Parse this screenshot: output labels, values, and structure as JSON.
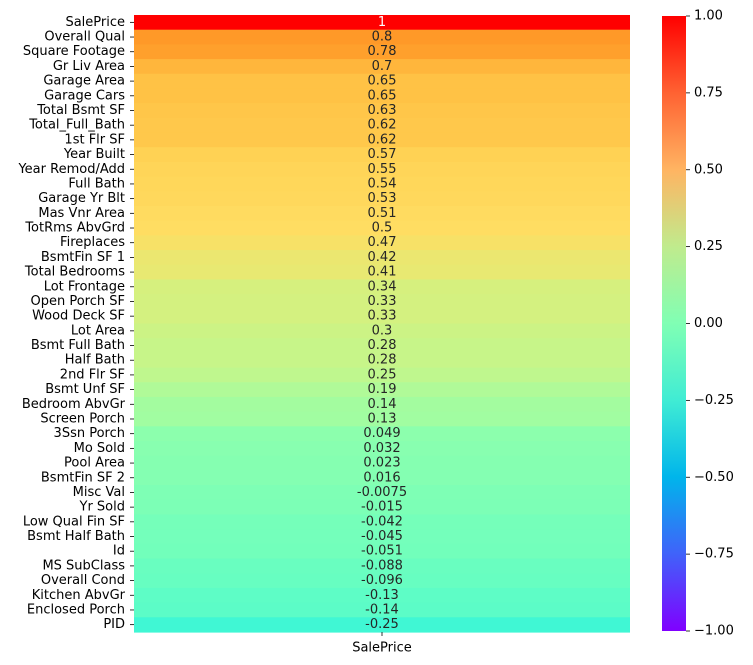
{
  "chart_data": {
    "type": "heatmap",
    "colormap": "rainbow",
    "x_categories": [
      "SalePrice"
    ],
    "y_categories": [
      "SalePrice",
      "Overall Qual",
      "Square Footage",
      "Gr Liv Area",
      "Garage Area",
      "Garage Cars",
      "Total Bsmt SF",
      "Total_Full_Bath",
      "1st Flr SF",
      "Year Built",
      "Year Remod/Add",
      "Full Bath",
      "Garage Yr Blt",
      "Mas Vnr Area",
      "TotRms AbvGrd",
      "Fireplaces",
      "BsmtFin SF 1",
      "Total Bedrooms",
      "Lot Frontage",
      "Open Porch SF",
      "Wood Deck SF",
      "Lot Area",
      "Bsmt Full Bath",
      "Half Bath",
      "2nd Flr SF",
      "Bsmt Unf SF",
      "Bedroom AbvGr",
      "Screen Porch",
      "3Ssn Porch",
      "Mo Sold",
      "Pool Area",
      "BsmtFin SF 2",
      "Misc Val",
      "Yr Sold",
      "Low Qual Fin SF",
      "Bsmt Half Bath",
      "Id",
      "MS SubClass",
      "Overall Cond",
      "Kitchen AbvGr",
      "Enclosed Porch",
      "PID"
    ],
    "values": [
      1,
      0.8,
      0.78,
      0.7,
      0.65,
      0.65,
      0.63,
      0.62,
      0.62,
      0.57,
      0.55,
      0.54,
      0.53,
      0.51,
      0.5,
      0.47,
      0.42,
      0.41,
      0.34,
      0.33,
      0.33,
      0.3,
      0.28,
      0.28,
      0.25,
      0.19,
      0.14,
      0.13,
      0.049,
      0.032,
      0.023,
      0.016,
      -0.0075,
      -0.015,
      -0.042,
      -0.045,
      -0.051,
      -0.088,
      -0.096,
      -0.13,
      -0.14,
      -0.25
    ],
    "value_labels": [
      "1",
      "0.8",
      "0.78",
      "0.7",
      "0.65",
      "0.65",
      "0.63",
      "0.62",
      "0.62",
      "0.57",
      "0.55",
      "0.54",
      "0.53",
      "0.51",
      "0.5",
      "0.47",
      "0.42",
      "0.41",
      "0.34",
      "0.33",
      "0.33",
      "0.3",
      "0.28",
      "0.28",
      "0.25",
      "0.19",
      "0.14",
      "0.13",
      "0.049",
      "0.032",
      "0.023",
      "0.016",
      "-0.0075",
      "-0.015",
      "-0.042",
      "-0.045",
      "-0.051",
      "-0.088",
      "-0.096",
      "-0.13",
      "-0.14",
      "-0.25"
    ],
    "colorbar": {
      "range": [
        -1,
        1
      ],
      "ticks": [
        1.0,
        0.75,
        0.5,
        0.25,
        0.0,
        -0.25,
        -0.5,
        -0.75,
        -1.0
      ],
      "tick_labels": [
        "1.00",
        "0.75",
        "0.50",
        "0.25",
        "0.00",
        "−0.25",
        "−0.50",
        "−0.75",
        "−1.00"
      ]
    }
  }
}
